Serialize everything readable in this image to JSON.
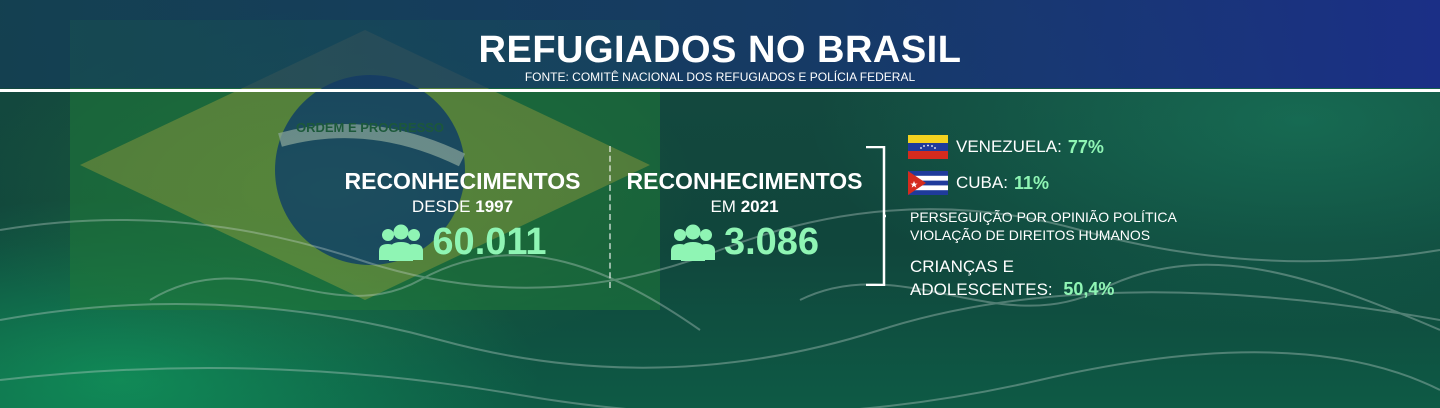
{
  "header": {
    "title": "REFUGIADOS NO BRASIL",
    "source": "FONTE: COMITÊ NACIONAL DOS REFUGIADOS E POLÍCIA FEDERAL"
  },
  "background": {
    "flag_motto": "ORDEM E PROGRESSO"
  },
  "stats": [
    {
      "label": "RECONHECIMENTOS",
      "sub_prefix": "DESDE",
      "sub_year": "1997",
      "value": "60.011"
    },
    {
      "label": "RECONHECIMENTOS",
      "sub_prefix": "EM",
      "sub_year": "2021",
      "value": "3.086"
    }
  ],
  "breakdown": {
    "countries": [
      {
        "name": "VENEZUELA:",
        "percent": "77%"
      },
      {
        "name": "CUBA:",
        "percent": "11%"
      }
    ],
    "reasons": [
      "PERSEGUIÇÃO POR OPINIÃO POLÍTICA",
      "VIOLAÇÃO DE DIREITOS HUMANOS"
    ],
    "kids": {
      "line1": "CRIANÇAS E",
      "line2": "ADOLESCENTES:",
      "percent": "50,4%"
    }
  },
  "colors": {
    "accent": "#8ff5b4",
    "header_blue": "#1b2f86",
    "text": "#ffffff"
  },
  "icons": [
    "people-icon",
    "venezuela-flag-icon",
    "cuba-flag-icon"
  ]
}
